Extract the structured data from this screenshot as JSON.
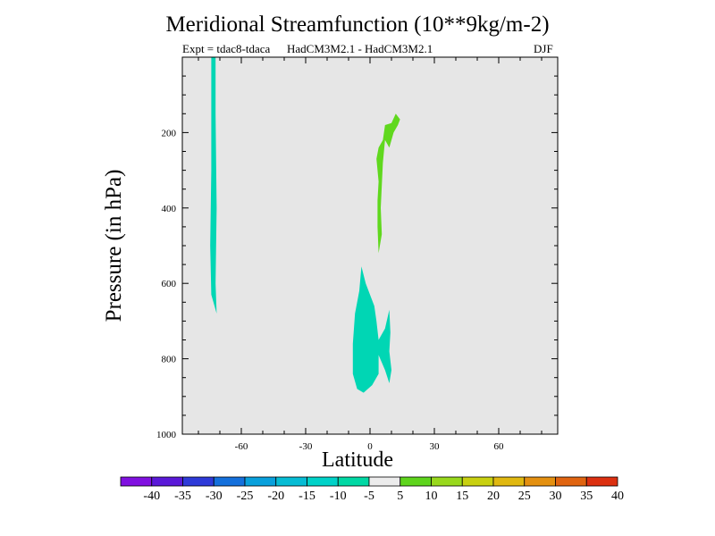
{
  "chart_data": {
    "type": "heatmap",
    "title": "Meridional Streamfunction (10**9kg/m-2)",
    "subtitle_left": "Expt = tdac8-tdaca",
    "subtitle_center": "HadCM3M2.1 - HadCM3M2.1",
    "subtitle_right": "DJF",
    "xlabel": "Latitude",
    "ylabel": "Pressure (in hPa)",
    "xlim": [
      -87.5,
      87.5
    ],
    "ylim": [
      1000,
      0
    ],
    "x_ticks": [
      -60,
      -30,
      0,
      30,
      60
    ],
    "y_ticks": [
      200,
      400,
      600,
      800,
      1000
    ],
    "background_color": "#e6e6e6",
    "contour_regions": [
      {
        "level": "-10 to -5",
        "color": "#00d6b4",
        "points": [
          [
            -74,
            0
          ],
          [
            -72,
            0
          ],
          [
            -72,
            150
          ],
          [
            -71.5,
            400
          ],
          [
            -72,
            600
          ],
          [
            -71.5,
            680
          ],
          [
            -73,
            650
          ],
          [
            -74,
            630
          ],
          [
            -74.5,
            500
          ],
          [
            -74,
            300
          ],
          [
            -74,
            100
          ]
        ]
      },
      {
        "level": "5 to 10",
        "color": "#60d81e",
        "points": [
          [
            4,
            330
          ],
          [
            3,
            270
          ],
          [
            4,
            240
          ],
          [
            6,
            220
          ],
          [
            7,
            180
          ],
          [
            10,
            175
          ],
          [
            12,
            150
          ],
          [
            14,
            165
          ],
          [
            13,
            180
          ],
          [
            11,
            200
          ],
          [
            9,
            240
          ],
          [
            7,
            220
          ],
          [
            6,
            280
          ],
          [
            5,
            400
          ],
          [
            5.5,
            470
          ],
          [
            4,
            520
          ],
          [
            3.5,
            450
          ],
          [
            3.5,
            380
          ]
        ]
      },
      {
        "level": "-10 to -5",
        "color": "#00d6b4",
        "points": [
          [
            -4,
            555
          ],
          [
            -2,
            600
          ],
          [
            2,
            660
          ],
          [
            3,
            700
          ],
          [
            4,
            750
          ],
          [
            7,
            720
          ],
          [
            9,
            670
          ],
          [
            9.5,
            730
          ],
          [
            9,
            780
          ],
          [
            10,
            830
          ],
          [
            9,
            865
          ],
          [
            7,
            830
          ],
          [
            4,
            790
          ],
          [
            4,
            840
          ],
          [
            1,
            870
          ],
          [
            -3,
            890
          ],
          [
            -6,
            880
          ],
          [
            -8,
            840
          ],
          [
            -8,
            760
          ],
          [
            -7,
            680
          ],
          [
            -5,
            620
          ]
        ]
      }
    ],
    "colorbar": {
      "labels": [
        "-40",
        "-35",
        "-30",
        "-25",
        "-20",
        "-15",
        "-10",
        "-5",
        "5",
        "10",
        "15",
        "20",
        "25",
        "30",
        "35",
        "40"
      ],
      "colors": [
        "#8010e0",
        "#5a18d8",
        "#2e3ad8",
        "#1470dc",
        "#08a0dc",
        "#06bcd4",
        "#00d2c8",
        "#00d8a4",
        "#ececec",
        "#5ed41c",
        "#98d81c",
        "#c8d010",
        "#e0b810",
        "#e49010",
        "#e06410",
        "#dc3010"
      ]
    }
  }
}
